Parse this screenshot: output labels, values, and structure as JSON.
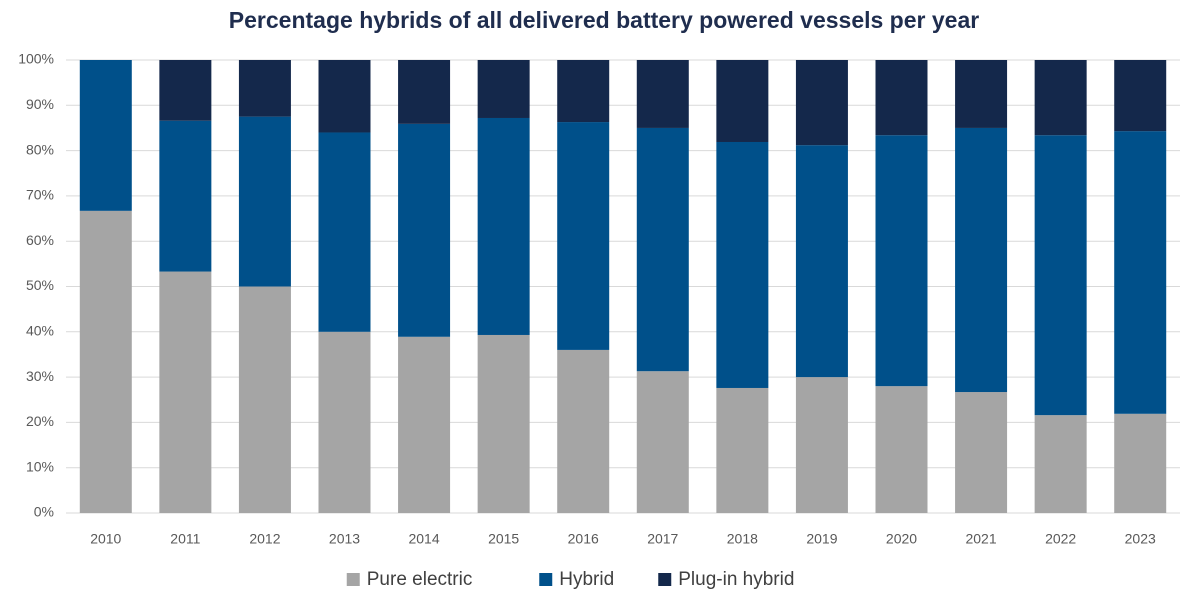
{
  "chart_data": {
    "type": "stacked_bar",
    "title": "Percentage hybrids of all delivered battery powered vessels per year",
    "categories": [
      "2010",
      "2011",
      "2012",
      "2013",
      "2014",
      "2015",
      "2016",
      "2017",
      "2018",
      "2019",
      "2020",
      "2021",
      "2022",
      "2023"
    ],
    "series": [
      {
        "name": "Pure electric",
        "color": "#a5a5a5",
        "values": [
          66.7,
          53.3,
          50,
          40,
          38.9,
          39.3,
          36,
          31.3,
          27.6,
          30,
          28,
          26.7,
          21.6,
          21.9
        ]
      },
      {
        "name": "Hybrid",
        "color": "#00508a",
        "values": [
          33.3,
          33.3,
          37.5,
          44,
          47,
          47.9,
          50.3,
          53.7,
          54.3,
          51.2,
          55.4,
          58.3,
          61.8,
          62.4
        ]
      },
      {
        "name": "Plug-in hybrid",
        "color": "#14284b",
        "values": [
          0,
          13.4,
          12.5,
          16,
          14.1,
          12.8,
          13.7,
          15,
          18.1,
          18.8,
          16.6,
          15,
          16.6,
          15.7
        ]
      }
    ],
    "ylim": [
      0,
      100
    ],
    "yticks": [
      {
        "value": 0,
        "label": "0%"
      },
      {
        "value": 10,
        "label": "10%"
      },
      {
        "value": 20,
        "label": "20%"
      },
      {
        "value": 30,
        "label": "30%"
      },
      {
        "value": 40,
        "label": "40%"
      },
      {
        "value": 50,
        "label": "50%"
      },
      {
        "value": 60,
        "label": "60%"
      },
      {
        "value": 70,
        "label": "70%"
      },
      {
        "value": 80,
        "label": "80%"
      },
      {
        "value": 90,
        "label": "90%"
      },
      {
        "value": 100,
        "label": "100%"
      }
    ],
    "grid": true,
    "legend": "bottom"
  }
}
